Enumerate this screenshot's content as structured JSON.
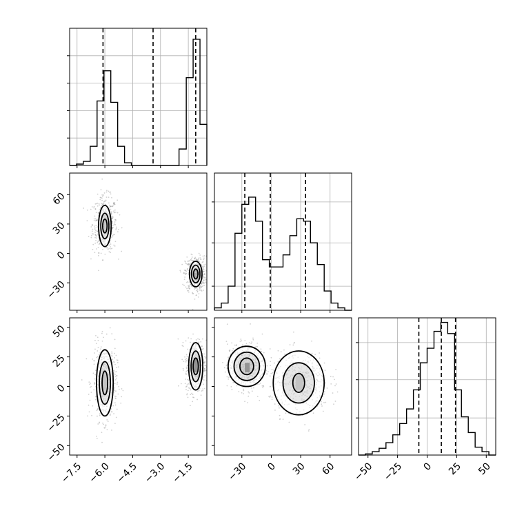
{
  "chart_data": {
    "type": "corner",
    "title": "",
    "grid": true,
    "parameters": [
      "",
      "",
      ""
    ],
    "quantile_lines": [
      [
        -6.1,
        -3.4,
        -1.1
      ],
      [
        -27,
        -1,
        35
      ],
      [
        -7,
        12,
        24
      ]
    ],
    "diagonal": [
      {
        "range": [
          -7.9,
          -0.5
        ],
        "ylim": [
          0,
          1.0
        ],
        "ytick_values": [
          0.2,
          0.4,
          0.6,
          0.8
        ],
        "bin_edges": [
          -7.9,
          -7.53,
          -7.16,
          -6.79,
          -6.42,
          -6.05,
          -5.68,
          -5.31,
          -4.94,
          -4.57,
          -4.2,
          -3.83,
          -3.46,
          -3.09,
          -2.72,
          -2.35,
          -2.0,
          -1.61,
          -1.24,
          -0.87,
          -0.5
        ],
        "counts": [
          0.0,
          0.01,
          0.03,
          0.14,
          0.47,
          0.69,
          0.46,
          0.14,
          0.02,
          0.0,
          0.0,
          0.0,
          0.0,
          0.0,
          0.0,
          0.0,
          0.12,
          0.64,
          0.92,
          0.3
        ]
      },
      {
        "range": [
          -58,
          82
        ],
        "ylim": [
          0,
          0.57
        ],
        "ytick_values": [
          0.1,
          0.28,
          0.45
        ],
        "bin_edges": [
          -58,
          -51,
          -44,
          -37,
          -30,
          -23,
          -16,
          -9,
          -2,
          5,
          12,
          19,
          26,
          33,
          40,
          47,
          54,
          61,
          68,
          75,
          82
        ],
        "counts": [
          0.01,
          0.03,
          0.1,
          0.32,
          0.44,
          0.47,
          0.37,
          0.21,
          0.18,
          0.18,
          0.23,
          0.31,
          0.38,
          0.37,
          0.28,
          0.19,
          0.08,
          0.03,
          0.01,
          0.0
        ]
      },
      {
        "range": [
          -58,
          58
        ],
        "ylim": [
          0,
          1.22
        ],
        "ytick_values": [
          0.33,
          0.67,
          1.0
        ],
        "bin_edges": [
          -58,
          -52.2,
          -46.4,
          -40.6,
          -34.8,
          -29,
          -23.2,
          -17.4,
          -11.6,
          -5.8,
          0,
          5.8,
          11.6,
          17.4,
          23.2,
          29,
          34.8,
          40.6,
          46.4,
          52.2,
          58
        ],
        "counts": [
          0.0,
          0.01,
          0.03,
          0.06,
          0.11,
          0.18,
          0.28,
          0.41,
          0.58,
          0.82,
          0.95,
          1.1,
          1.18,
          1.08,
          0.58,
          0.34,
          0.2,
          0.07,
          0.03,
          0.0
        ]
      }
    ],
    "pairs": [
      {
        "row": 1,
        "col": 0,
        "xlim": [
          -7.9,
          -0.5
        ],
        "ylim": [
          -58,
          82
        ],
        "clusters": [
          {
            "cx": -6.0,
            "cy": 30,
            "sx": 0.33,
            "sy": 14,
            "n": 500
          },
          {
            "cx": -1.1,
            "cy": -21,
            "sx": 0.28,
            "sy": 9,
            "n": 500
          }
        ],
        "contours": [
          {
            "cx": -6.0,
            "cy": 28,
            "levels": [
              [
                0.34,
                21
              ],
              [
                0.22,
                13
              ],
              [
                0.12,
                7
              ]
            ]
          },
          {
            "cx": -1.1,
            "cy": -21,
            "levels": [
              [
                0.34,
                13
              ],
              [
                0.23,
                9
              ],
              [
                0.12,
                5
              ]
            ]
          }
        ],
        "pixels": [
          {
            "x": -1.2,
            "y": -25,
            "w": 0.2,
            "h": 5,
            "shade": "#6f6f6f"
          },
          {
            "x": -1.05,
            "y": -22,
            "w": 0.15,
            "h": 3,
            "shade": "#000000"
          },
          {
            "x": -6.05,
            "y": 25,
            "w": 0.2,
            "h": 12,
            "shade": "#c8c8c8"
          }
        ]
      },
      {
        "row": 2,
        "col": 0,
        "xlim": [
          -7.9,
          -0.5
        ],
        "ylim": [
          -58,
          58
        ],
        "clusters": [
          {
            "cx": -6.0,
            "cy": 3,
            "sx": 0.33,
            "sy": 16,
            "n": 500
          },
          {
            "cx": -1.1,
            "cy": 17,
            "sx": 0.28,
            "sy": 11,
            "n": 500
          }
        ],
        "contours": [
          {
            "cx": -6.0,
            "cy": 3,
            "levels": [
              [
                0.45,
                28
              ],
              [
                0.3,
                18
              ],
              [
                0.15,
                10
              ]
            ]
          },
          {
            "cx": -1.1,
            "cy": 17,
            "levels": [
              [
                0.38,
                20
              ],
              [
                0.25,
                13
              ],
              [
                0.14,
                7
              ]
            ]
          }
        ],
        "pixels": [
          {
            "x": -1.2,
            "y": 12,
            "w": 0.2,
            "h": 12,
            "shade": "#000000"
          },
          {
            "x": -6.1,
            "y": -2,
            "w": 0.2,
            "h": 12,
            "shade": "#bdbdbd"
          }
        ]
      },
      {
        "row": 2,
        "col": 1,
        "xlim": [
          -58,
          82
        ],
        "ylim": [
          -58,
          58
        ],
        "clusters": [
          {
            "cx": -25,
            "cy": 17,
            "sx": 10,
            "sy": 10,
            "n": 500
          },
          {
            "cx": 29,
            "cy": 3,
            "sx": 15,
            "sy": 13,
            "n": 500
          }
        ],
        "contours": [
          {
            "cx": -25,
            "cy": 17,
            "levels": [
              [
                19,
                17
              ],
              [
                13,
                12
              ],
              [
                7,
                7
              ]
            ]
          },
          {
            "cx": 28,
            "cy": 3,
            "levels": [
              [
                26,
                27
              ],
              [
                16,
                17
              ],
              [
                6,
                8
              ]
            ]
          }
        ],
        "pixels": [
          {
            "x": -27,
            "y": 12,
            "w": 5,
            "h": 8,
            "shade": "#000000"
          },
          {
            "x": 25,
            "y": -3,
            "w": 7,
            "h": 12,
            "shade": "#bdbdbd"
          }
        ]
      }
    ],
    "axes": {
      "bottom_x": [
        {
          "ticks": [
            -7.5,
            -6.0,
            -4.5,
            -3.0,
            -1.5
          ],
          "labels": [
            "−7.5",
            "−6.0",
            "−4.5",
            "−3.0",
            "−1.5"
          ]
        },
        {
          "ticks": [
            -30,
            0,
            30,
            60
          ],
          "labels": [
            "−30",
            "0",
            "30",
            "60"
          ]
        },
        {
          "ticks": [
            -50,
            -25,
            0,
            25,
            50
          ],
          "labels": [
            "−50",
            "−25",
            "0",
            "25",
            "50"
          ]
        }
      ],
      "left_y": [
        {
          "row": 1,
          "ticks": [
            -30,
            0,
            30,
            60
          ],
          "labels": [
            "−30",
            "0",
            "30",
            "60"
          ]
        },
        {
          "row": 2,
          "ticks": [
            -50,
            -25,
            0,
            25,
            50
          ],
          "labels": [
            "−50",
            "−25",
            "0",
            "25",
            "50"
          ]
        }
      ]
    }
  }
}
